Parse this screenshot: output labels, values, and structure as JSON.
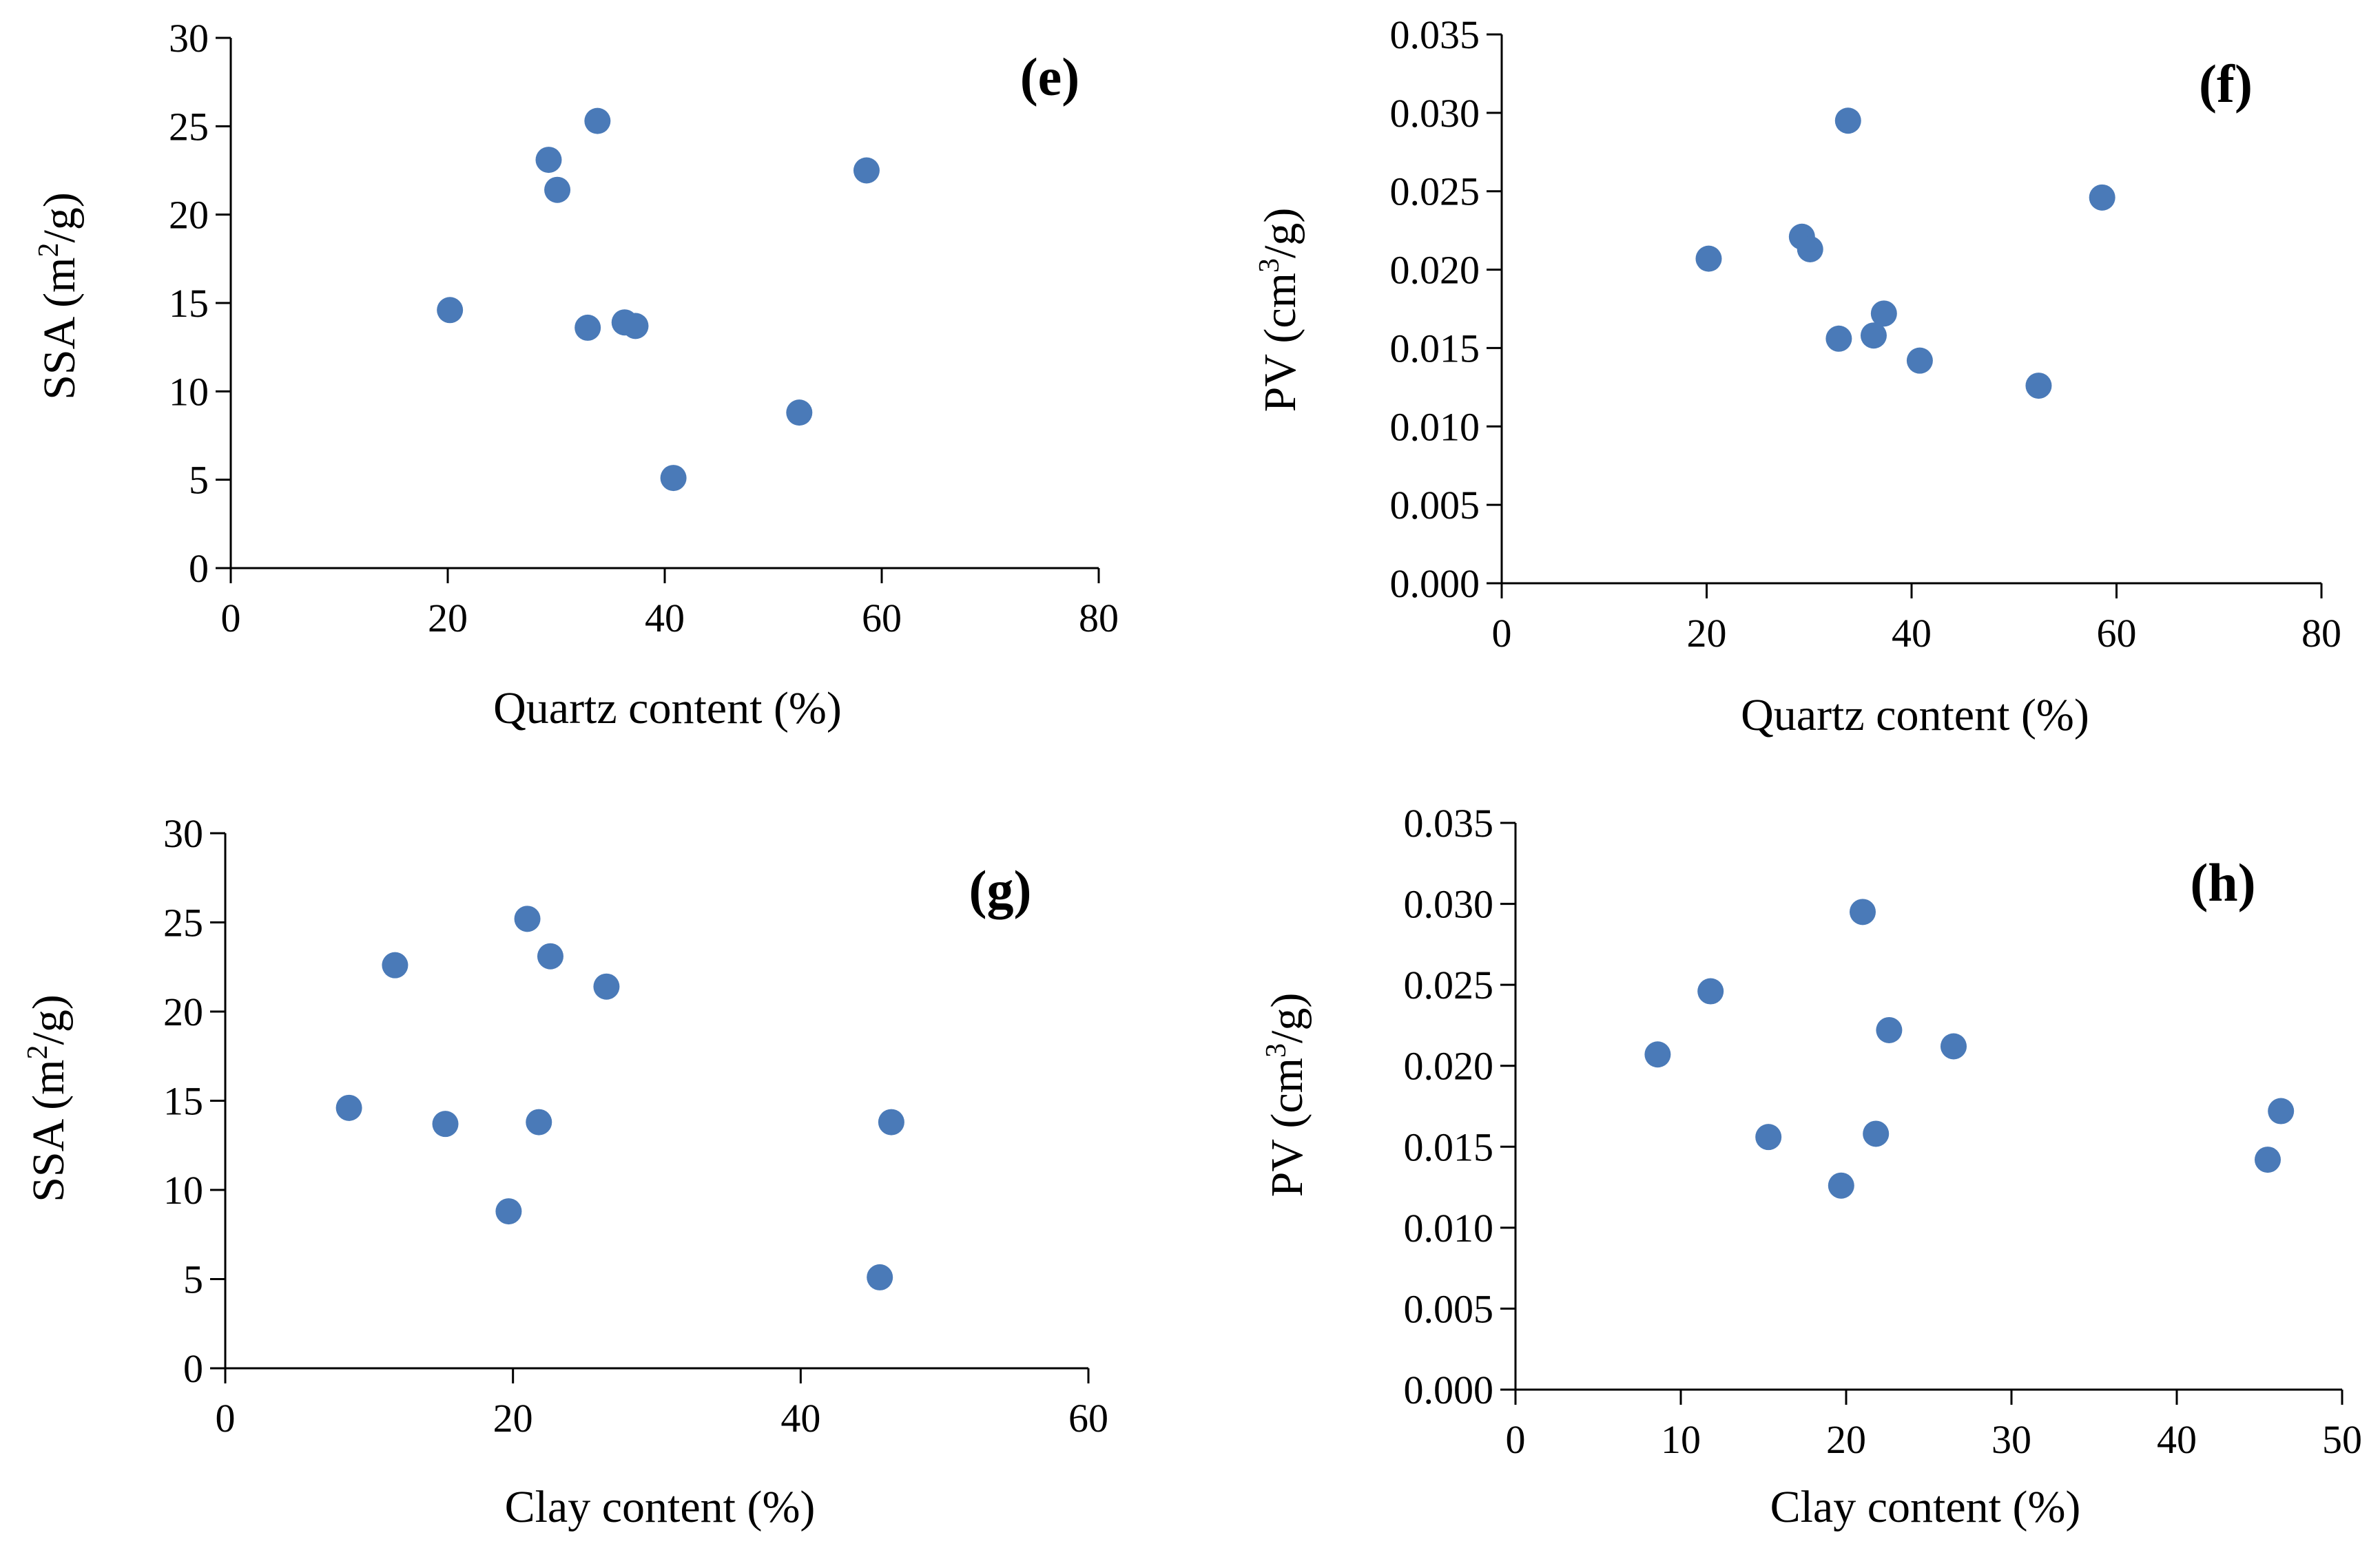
{
  "figure": {
    "marker_color": "#4a7ab8"
  },
  "chart_data": [
    {
      "type": "scatter",
      "panel_label": "(e)",
      "xlabel": "Quartz content (%)",
      "ylabel": "SSA (m²/g)",
      "ylabel_base": "SSA (m",
      "ylabel_sup": "2",
      "ylabel_tail": "/g)",
      "xlim": [
        0,
        80
      ],
      "ylim": [
        0,
        30
      ],
      "xticks": [
        "0",
        "20",
        "40",
        "60",
        "80"
      ],
      "yticks": [
        "0",
        "5",
        "10",
        "15",
        "20",
        "25",
        "30"
      ],
      "grid": false,
      "legend": "none",
      "points": [
        {
          "x": 20.2,
          "y": 14.6
        },
        {
          "x": 29.3,
          "y": 23.1
        },
        {
          "x": 30.1,
          "y": 21.4
        },
        {
          "x": 33.8,
          "y": 25.3
        },
        {
          "x": 32.9,
          "y": 13.6
        },
        {
          "x": 36.3,
          "y": 13.9
        },
        {
          "x": 37.3,
          "y": 13.7
        },
        {
          "x": 40.8,
          "y": 5.1
        },
        {
          "x": 52.4,
          "y": 8.8
        },
        {
          "x": 58.6,
          "y": 22.5
        }
      ]
    },
    {
      "type": "scatter",
      "panel_label": "(f)",
      "xlabel": "Quartz content (%)",
      "ylabel": "PV (cm³/g)",
      "ylabel_base": "PV (cm",
      "ylabel_sup": "3",
      "ylabel_tail": "/g)",
      "xlim": [
        0,
        80
      ],
      "ylim": [
        0,
        0.035
      ],
      "xticks": [
        "0",
        "20",
        "40",
        "60",
        "80"
      ],
      "yticks": [
        "0.000",
        "0.005",
        "0.010",
        "0.015",
        "0.020",
        "0.025",
        "0.030",
        "0.035"
      ],
      "grid": false,
      "legend": "none",
      "points": [
        {
          "x": 20.2,
          "y": 0.0207
        },
        {
          "x": 29.3,
          "y": 0.0221
        },
        {
          "x": 30.1,
          "y": 0.0213
        },
        {
          "x": 33.8,
          "y": 0.0295
        },
        {
          "x": 32.9,
          "y": 0.0156
        },
        {
          "x": 36.3,
          "y": 0.0158
        },
        {
          "x": 37.3,
          "y": 0.0172
        },
        {
          "x": 40.8,
          "y": 0.0142
        },
        {
          "x": 52.4,
          "y": 0.0126
        },
        {
          "x": 58.6,
          "y": 0.0246
        }
      ]
    },
    {
      "type": "scatter",
      "panel_label": "(g)",
      "xlabel": "Clay content (%)",
      "ylabel": "SSA (m²/g)",
      "ylabel_base": "SSA (m",
      "ylabel_sup": "2",
      "ylabel_tail": "/g)",
      "xlim": [
        0,
        60
      ],
      "ylim": [
        0,
        30
      ],
      "xticks": [
        "0",
        "20",
        "40",
        "60"
      ],
      "yticks": [
        "0",
        "5",
        "10",
        "15",
        "20",
        "25",
        "30"
      ],
      "grid": false,
      "legend": "none",
      "points": [
        {
          "x": 8.6,
          "y": 14.6
        },
        {
          "x": 11.8,
          "y": 22.6
        },
        {
          "x": 15.3,
          "y": 13.7
        },
        {
          "x": 19.7,
          "y": 8.8
        },
        {
          "x": 21.0,
          "y": 25.2
        },
        {
          "x": 21.8,
          "y": 13.8
        },
        {
          "x": 22.6,
          "y": 23.1
        },
        {
          "x": 26.5,
          "y": 21.4
        },
        {
          "x": 45.5,
          "y": 5.1
        },
        {
          "x": 46.3,
          "y": 13.8
        }
      ]
    },
    {
      "type": "scatter",
      "panel_label": "(h)",
      "xlabel": "Clay content (%)",
      "ylabel": "PV (cm³/g)",
      "ylabel_base": "PV (cm",
      "ylabel_sup": "3",
      "ylabel_tail": "/g)",
      "xlim": [
        0,
        50
      ],
      "ylim": [
        0,
        0.035
      ],
      "xticks": [
        "0",
        "10",
        "20",
        "30",
        "40",
        "50"
      ],
      "yticks": [
        "0.000",
        "0.005",
        "0.010",
        "0.015",
        "0.020",
        "0.025",
        "0.030",
        "0.035"
      ],
      "grid": false,
      "legend": "none",
      "points": [
        {
          "x": 8.6,
          "y": 0.0207
        },
        {
          "x": 11.8,
          "y": 0.0246
        },
        {
          "x": 15.3,
          "y": 0.0156
        },
        {
          "x": 19.7,
          "y": 0.0126
        },
        {
          "x": 21.0,
          "y": 0.0295
        },
        {
          "x": 21.8,
          "y": 0.0158
        },
        {
          "x": 22.6,
          "y": 0.0222
        },
        {
          "x": 26.5,
          "y": 0.0212
        },
        {
          "x": 45.5,
          "y": 0.0142
        },
        {
          "x": 46.3,
          "y": 0.0172
        }
      ]
    }
  ]
}
